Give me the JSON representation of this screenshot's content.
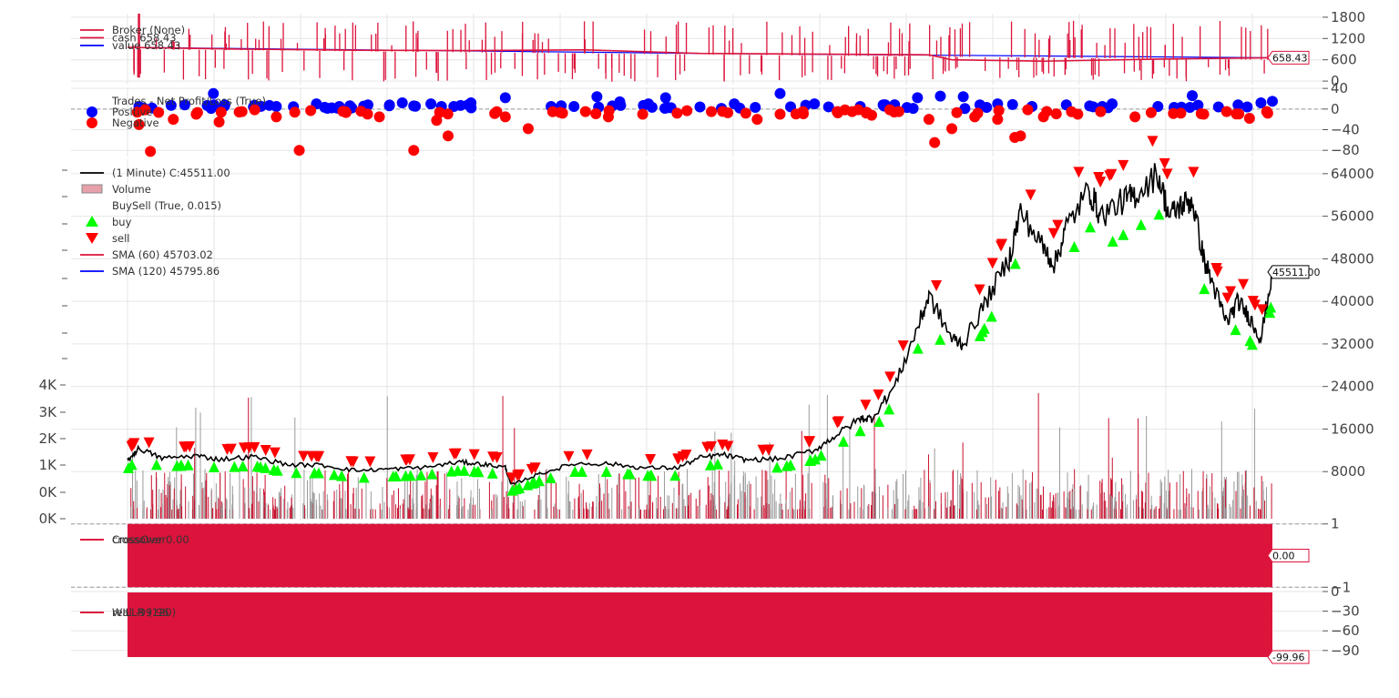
{
  "colors": {
    "cash": "#dc143c",
    "value": "#0000ff",
    "price": "#000000",
    "buy": "#00ff00",
    "sell": "#ff0000",
    "positive": "#0000ff",
    "negative": "#ff0000",
    "volume": "#c8102e",
    "crossover": "#dc143c",
    "willr": "#dc143c",
    "grid": "#e6e6e6"
  },
  "chart_data": [
    {
      "id": "broker",
      "type": "line",
      "legend": [
        {
          "label": "Broker (None)",
          "color": "#dc143c"
        },
        {
          "label": "cash 658.43",
          "color": "#dc143c"
        },
        {
          "label": "value 658.43",
          "color": "#0000ff"
        }
      ],
      "series": [
        {
          "name": "cash",
          "x": [
            0,
            0.1,
            0.2,
            0.3,
            0.4,
            0.5,
            0.6,
            0.7,
            0.72,
            0.8,
            0.9,
            1.0
          ],
          "values": [
            950,
            900,
            870,
            860,
            880,
            780,
            760,
            740,
            600,
            560,
            620,
            658.43
          ]
        },
        {
          "name": "value",
          "x": [
            0,
            0.5,
            1.0
          ],
          "values": [
            950,
            780,
            658.43
          ]
        }
      ],
      "yticks": [
        "1800",
        "1200",
        "600",
        "0"
      ],
      "ytick_values": [
        1800,
        1200,
        600,
        0
      ],
      "ylim": [
        -100,
        1900
      ],
      "last_value": "658.43"
    },
    {
      "id": "trades",
      "type": "scatter",
      "legend": [
        {
          "label": "Trades - Net Profit/Loss (True)",
          "marker": "none"
        },
        {
          "label": "Positive",
          "marker": "dot",
          "color": "#0000ff"
        },
        {
          "label": "Negative",
          "marker": "dot",
          "color": "#ff0000"
        }
      ],
      "yticks": [
        "40",
        "0",
        "−40",
        "−80"
      ],
      "ytick_values": [
        40,
        0,
        -40,
        -80
      ],
      "ylim": [
        -92,
        42
      ],
      "positive": {
        "x": [
          0.01,
          0.05,
          0.075,
          0.085,
          0.11,
          0.13,
          0.165,
          0.185,
          0.21,
          0.24,
          0.25,
          0.265,
          0.285,
          0.3,
          0.33,
          0.37,
          0.39,
          0.41,
          0.43,
          0.455,
          0.47,
          0.5,
          0.53,
          0.57,
          0.6,
          0.64,
          0.66,
          0.69,
          0.71,
          0.73,
          0.76,
          0.79,
          0.82,
          0.86,
          0.9,
          0.93,
          0.97,
          0.99,
          1.0
        ],
        "values": [
          5,
          8,
          30,
          8,
          4,
          5,
          10,
          5,
          8,
          12,
          6,
          10,
          5,
          12,
          22,
          5,
          5,
          24,
          14,
          10,
          22,
          4,
          10,
          30,
          10,
          5,
          8,
          22,
          25,
          24,
          10,
          5,
          8,
          10,
          5,
          26,
          8,
          12,
          15
        ]
      },
      "negative": {
        "x": [
          0.01,
          0.02,
          0.04,
          0.06,
          0.08,
          0.1,
          0.13,
          0.15,
          0.16,
          0.19,
          0.22,
          0.25,
          0.27,
          0.28,
          0.33,
          0.35,
          0.38,
          0.4,
          0.42,
          0.45,
          0.48,
          0.51,
          0.54,
          0.55,
          0.57,
          0.59,
          0.62,
          0.65,
          0.7,
          0.705,
          0.72,
          0.74,
          0.76,
          0.775,
          0.78,
          0.8,
          0.83,
          0.85,
          0.88,
          0.92,
          0.94,
          0.96,
          0.98,
          0.995
        ],
        "values": [
          -30,
          -82,
          -20,
          -10,
          -25,
          -5,
          -15,
          -80,
          -3,
          -5,
          -15,
          -80,
          -22,
          -52,
          -15,
          -38,
          -8,
          -5,
          -15,
          -10,
          -8,
          -5,
          -8,
          -20,
          -10,
          -5,
          -5,
          -12,
          -20,
          -65,
          -38,
          -15,
          -20,
          -55,
          -52,
          -15,
          -10,
          -5,
          -15,
          -8,
          -10,
          -5,
          -18,
          -5
        ]
      }
    },
    {
      "id": "price",
      "type": "line",
      "legend": [
        {
          "label": " (1 Minute) C:45511.00",
          "marker": "line",
          "color": "#000000"
        },
        {
          "label": "Volume",
          "marker": "box",
          "color": "#e8a0aa"
        },
        {
          "label": "BuySell (True, 0.015)",
          "marker": "none"
        },
        {
          "label": "buy",
          "marker": "up",
          "color": "#00ff00"
        },
        {
          "label": "sell",
          "marker": "down",
          "color": "#ff0000"
        },
        {
          "label": "SMA (60) 45703.02",
          "marker": "line",
          "color": "#dc143c"
        },
        {
          "label": "SMA (120) 45795.86",
          "marker": "line",
          "color": "#0000ff"
        }
      ],
      "yticks": [
        "64000",
        "56000",
        "48000",
        "40000",
        "32000",
        "24000",
        "16000",
        "8000"
      ],
      "ytick_values": [
        64000,
        56000,
        48000,
        40000,
        32000,
        24000,
        16000,
        8000
      ],
      "ylim": [
        0,
        65000
      ],
      "x": [
        0,
        0.01,
        0.03,
        0.06,
        0.08,
        0.11,
        0.14,
        0.17,
        0.2,
        0.23,
        0.26,
        0.29,
        0.31,
        0.33,
        0.335,
        0.36,
        0.39,
        0.42,
        0.45,
        0.48,
        0.5,
        0.52,
        0.54,
        0.57,
        0.6,
        0.62,
        0.64,
        0.65,
        0.67,
        0.69,
        0.7,
        0.72,
        0.73,
        0.75,
        0.77,
        0.78,
        0.8,
        0.81,
        0.82,
        0.84,
        0.85,
        0.87,
        0.88,
        0.9,
        0.91,
        0.92,
        0.93,
        0.94,
        0.95,
        0.96,
        0.97,
        0.98,
        0.99,
        1.0
      ],
      "values": [
        10100,
        12400,
        10500,
        11000,
        10300,
        10800,
        9300,
        9200,
        8200,
        8500,
        8800,
        9800,
        9400,
        8800,
        5500,
        7600,
        9500,
        9500,
        8700,
        8700,
        10600,
        11200,
        10200,
        10400,
        12000,
        15000,
        18000,
        18000,
        24000,
        35000,
        41000,
        33000,
        32000,
        40000,
        48000,
        57000,
        50000,
        47000,
        54000,
        61000,
        56000,
        59000,
        60000,
        64000,
        56000,
        58000,
        59000,
        48000,
        42000,
        36000,
        40000,
        37000,
        33000,
        45511
      ],
      "last_value": "45511.00",
      "volume_yticks": [
        "4K",
        "3K",
        "2K",
        "1K",
        "0K",
        "0K"
      ],
      "volume_ytick_values": [
        4000,
        3000,
        2000,
        1000,
        0,
        -1000
      ]
    },
    {
      "id": "crossover",
      "type": "bar",
      "legend": [
        {
          "label": "CrossOver",
          "color": "#dc143c"
        },
        {
          "label": "crossover 0.00",
          "color": "#dc143c"
        }
      ],
      "yticks": [
        "1",
        "−1"
      ],
      "ytick_values": [
        1,
        -1
      ],
      "ylim": [
        -1.05,
        1.05
      ],
      "last_value": "0.00"
    },
    {
      "id": "willr",
      "type": "area",
      "legend": [
        {
          "label": "WILLR (120)",
          "color": "#dc143c"
        },
        {
          "label": "real -99.96",
          "color": "#dc143c"
        }
      ],
      "yticks": [
        "0",
        "−30",
        "−60",
        "−90"
      ],
      "ytick_values": [
        0,
        -30,
        -60,
        -90
      ],
      "ylim": [
        -100,
        0
      ],
      "last_value": "-99.96"
    }
  ]
}
